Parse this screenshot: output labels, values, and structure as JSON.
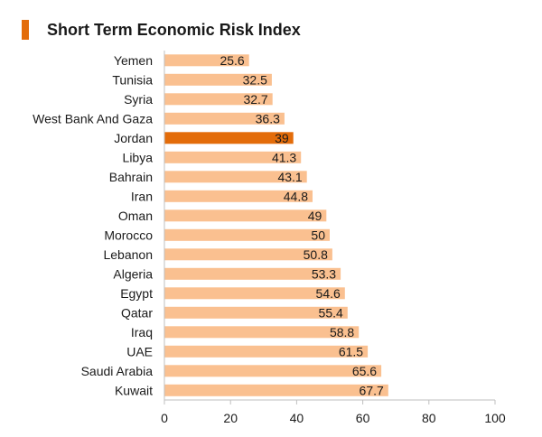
{
  "chart_data": {
    "type": "bar",
    "orientation": "horizontal",
    "title": "Short Term Economic Risk Index",
    "categories": [
      "Yemen",
      "Tunisia",
      "Syria",
      "West Bank And Gaza",
      "Jordan",
      "Libya",
      "Bahrain",
      "Iran",
      "Oman",
      "Morocco",
      "Lebanon",
      "Algeria",
      "Egypt",
      "Qatar",
      "Iraq",
      "UAE",
      "Saudi Arabia",
      "Kuwait"
    ],
    "values": [
      25.6,
      32.5,
      32.7,
      36.3,
      39,
      41.3,
      43.1,
      44.8,
      49,
      50,
      50.8,
      53.3,
      54.6,
      55.4,
      58.8,
      61.5,
      65.6,
      67.7
    ],
    "value_labels": [
      "25.6",
      "32.5",
      "32.7",
      "36.3",
      "39",
      "41.3",
      "43.1",
      "44.8",
      "49",
      "50",
      "50.8",
      "53.3",
      "54.6",
      "55.4",
      "58.8",
      "61.5",
      "65.6",
      "67.7"
    ],
    "highlight": "Jordan",
    "xlim": [
      0,
      100
    ],
    "xticks": [
      "0",
      "20",
      "40",
      "60",
      "80",
      "100"
    ],
    "xlabel": "",
    "ylabel": "",
    "grid": false,
    "colors": {
      "bar": "#fac090",
      "highlight": "#e36c0a",
      "accent": "#e36c0a"
    }
  }
}
